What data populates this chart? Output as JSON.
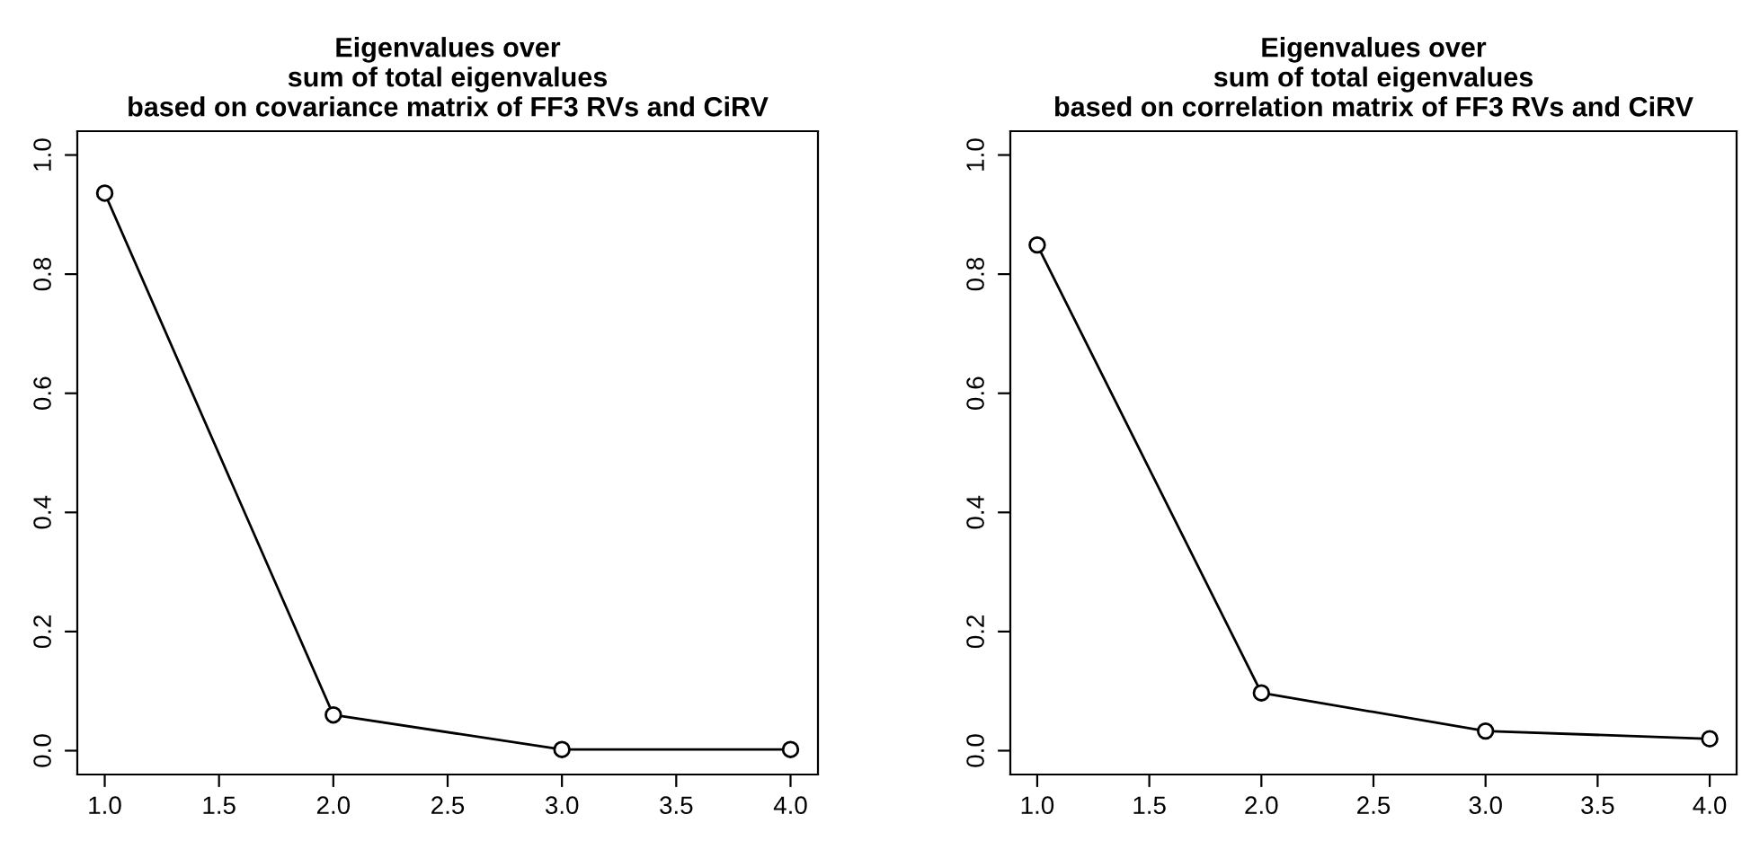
{
  "chart_data": [
    {
      "type": "line",
      "title": "Eigenvalues over\nsum of total eigenvalues\nbased on covariance matrix of FF3 RVs and CiRV",
      "x": [
        1,
        2,
        3,
        4
      ],
      "series": [
        {
          "color": "#000000",
          "values": [
            0.936,
            0.06,
            0.002,
            0.002
          ]
        }
      ],
      "xlim": [
        0.88,
        4.12
      ],
      "ylim": [
        -0.04,
        1.04
      ],
      "xticks": [
        {
          "value": 1,
          "label": "1.0"
        },
        {
          "value": 1.5,
          "label": "1.5"
        },
        {
          "value": 2,
          "label": "2.0"
        },
        {
          "value": 2.5,
          "label": "2.5"
        },
        {
          "value": 3,
          "label": "3.0"
        },
        {
          "value": 3.5,
          "label": "3.5"
        },
        {
          "value": 4,
          "label": "4.0"
        }
      ],
      "yticks": [
        {
          "value": 0,
          "label": "0.0"
        },
        {
          "value": 0.2,
          "label": "0.2"
        },
        {
          "value": 0.4,
          "label": "0.4"
        },
        {
          "value": 0.6,
          "label": "0.6"
        },
        {
          "value": 0.8,
          "label": "0.8"
        },
        {
          "value": 1,
          "label": "1.0"
        }
      ],
      "marker": "circle",
      "line_style": "solid"
    },
    {
      "type": "line",
      "title": "Eigenvalues over\nsum of total eigenvalues\nbased on correlation matrix of FF3 RVs and CiRV",
      "x": [
        1,
        2,
        3,
        4
      ],
      "series": [
        {
          "color": "#000000",
          "values": [
            0.849,
            0.097,
            0.033,
            0.02
          ]
        }
      ],
      "xlim": [
        0.88,
        4.12
      ],
      "ylim": [
        -0.04,
        1.04
      ],
      "xticks": [
        {
          "value": 1,
          "label": "1.0"
        },
        {
          "value": 1.5,
          "label": "1.5"
        },
        {
          "value": 2,
          "label": "2.0"
        },
        {
          "value": 2.5,
          "label": "2.5"
        },
        {
          "value": 3,
          "label": "3.0"
        },
        {
          "value": 3.5,
          "label": "3.5"
        },
        {
          "value": 4,
          "label": "4.0"
        }
      ],
      "yticks": [
        {
          "value": 0,
          "label": "0.0"
        },
        {
          "value": 0.2,
          "label": "0.2"
        },
        {
          "value": 0.4,
          "label": "0.4"
        },
        {
          "value": 0.6,
          "label": "0.6"
        },
        {
          "value": 0.8,
          "label": "0.8"
        },
        {
          "value": 1,
          "label": "1.0"
        }
      ],
      "marker": "circle",
      "line_style": "solid"
    }
  ]
}
